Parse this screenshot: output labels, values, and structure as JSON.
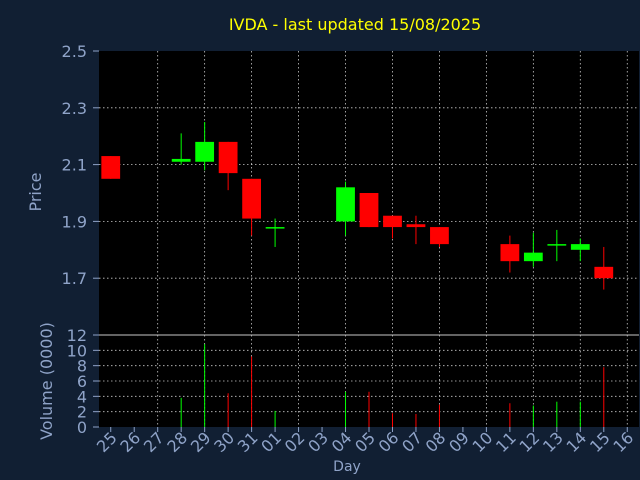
{
  "chart_data": {
    "type": "candlestick",
    "title": "IVDA - last updated 15/08/2025",
    "xlabel": "Day",
    "ylabel": "Price",
    "volume_label": "Volume (0000)",
    "ylim": [
      1.5,
      2.5
    ],
    "yticks": [
      "2.5",
      "2.3",
      "2.1",
      "1.9",
      "1.7"
    ],
    "volume_ylim": [
      0,
      12
    ],
    "volume_yticks": [
      "12",
      "10",
      "8",
      "6",
      "4",
      "2",
      "0"
    ],
    "grid": true,
    "days": [
      "25",
      "26",
      "27",
      "28",
      "29",
      "30",
      "31",
      "01",
      "02",
      "03",
      "04",
      "05",
      "06",
      "07",
      "08",
      "09",
      "10",
      "11",
      "12",
      "13",
      "14",
      "15",
      "16"
    ],
    "candles": [
      {
        "day": "25",
        "open": 2.13,
        "high": 2.13,
        "low": 2.05,
        "close": 2.05,
        "volume": null
      },
      {
        "day": "28",
        "open": 2.11,
        "high": 2.21,
        "low": 2.1,
        "close": 2.12,
        "volume": 3.8
      },
      {
        "day": "29",
        "open": 2.11,
        "high": 2.25,
        "low": 2.08,
        "close": 2.18,
        "volume": 10.8
      },
      {
        "day": "30",
        "open": 2.18,
        "high": 2.18,
        "low": 2.01,
        "close": 2.07,
        "volume": 4.4
      },
      {
        "day": "31",
        "open": 2.05,
        "high": 2.05,
        "low": 1.85,
        "close": 1.91,
        "volume": 9.2
      },
      {
        "day": "01",
        "open": 1.88,
        "high": 1.91,
        "low": 1.81,
        "close": 1.88,
        "volume": 2.1
      },
      {
        "day": "04",
        "open": 1.9,
        "high": 2.04,
        "low": 1.85,
        "close": 2.02,
        "volume": 4.6
      },
      {
        "day": "05",
        "open": 2.0,
        "high": 2.0,
        "low": 1.88,
        "close": 1.88,
        "volume": 4.6
      },
      {
        "day": "06",
        "open": 1.92,
        "high": 1.92,
        "low": 1.84,
        "close": 1.88,
        "volume": 1.8
      },
      {
        "day": "07",
        "open": 1.89,
        "high": 1.92,
        "low": 1.82,
        "close": 1.88,
        "volume": 1.7
      },
      {
        "day": "08",
        "open": 1.88,
        "high": 1.88,
        "low": 1.81,
        "close": 1.82,
        "volume": 2.9
      },
      {
        "day": "11",
        "open": 1.82,
        "high": 1.85,
        "low": 1.72,
        "close": 1.76,
        "volume": 3.1
      },
      {
        "day": "12",
        "open": 1.76,
        "high": 1.86,
        "low": 1.74,
        "close": 1.79,
        "volume": 2.8
      },
      {
        "day": "13",
        "open": 1.82,
        "high": 1.87,
        "low": 1.76,
        "close": 1.82,
        "volume": 3.3
      },
      {
        "day": "14",
        "open": 1.8,
        "high": 1.84,
        "low": 1.76,
        "close": 1.82,
        "volume": 3.3
      },
      {
        "day": "15",
        "open": 1.74,
        "high": 1.81,
        "low": 1.66,
        "close": 1.7,
        "volume": 7.8
      }
    ],
    "colors": {
      "background": "#111f33",
      "plot_background": "#000000",
      "grid": "#c8c8c8",
      "up": "#00ff00",
      "down": "#ff0000",
      "title": "#ffff00",
      "label": "#8fa3c8",
      "tick": "#8fa3c8"
    }
  }
}
